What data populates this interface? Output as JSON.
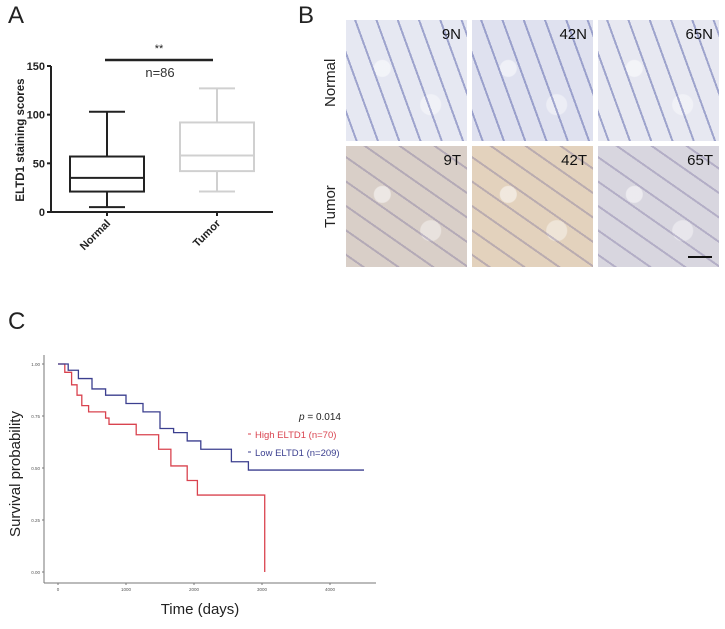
{
  "panels": {
    "a": {
      "letter": "A"
    },
    "b": {
      "letter": "B"
    },
    "c": {
      "letter": "C"
    }
  },
  "chart_data": [
    {
      "type": "box",
      "panel": "A",
      "title": "",
      "ylabel": "ELTD1 staining scores",
      "xlabel": "",
      "ylim": [
        0,
        150
      ],
      "yticks": [
        0,
        50,
        100,
        150
      ],
      "categories": [
        "Normal",
        "Tumor"
      ],
      "series": [
        {
          "name": "Normal",
          "whisker_low": 5,
          "q1": 21,
          "median": 35,
          "q3": 57,
          "whisker_high": 103,
          "color": "#222222"
        },
        {
          "name": "Tumor",
          "whisker_low": 21,
          "q1": 42,
          "median": 58,
          "q3": 92,
          "whisker_high": 127,
          "color": "#d0d0d0"
        }
      ],
      "annotations": {
        "significance": "**",
        "n_label": "n=86"
      }
    },
    {
      "type": "image-grid",
      "panel": "B",
      "rows": [
        "Normal",
        "Tumor"
      ],
      "tiles": [
        {
          "label": "9N",
          "row": "Normal"
        },
        {
          "label": "42N",
          "row": "Normal"
        },
        {
          "label": "65N",
          "row": "Normal"
        },
        {
          "label": "9T",
          "row": "Tumor"
        },
        {
          "label": "42T",
          "row": "Tumor"
        },
        {
          "label": "65T",
          "row": "Tumor"
        }
      ]
    },
    {
      "type": "line",
      "subtype": "kaplan-meier",
      "panel": "C",
      "title": "",
      "xlabel": "Time (days)",
      "ylabel": "Survival probability",
      "xlim": [
        0,
        4500
      ],
      "ylim": [
        0,
        1
      ],
      "xticks": [
        0,
        1000,
        2000,
        3000,
        4000
      ],
      "yticks": [
        "0.00",
        "0.25",
        "0.50",
        "0.75",
        "1.00"
      ],
      "grid": false,
      "annotation": {
        "p_label": "p",
        "p_value": "= 0.014"
      },
      "series": [
        {
          "name": "High ELTD1 (n=70)",
          "color": "#d9434f",
          "x": [
            0,
            100,
            200,
            280,
            350,
            450,
            700,
            750,
            1150,
            1480,
            1660,
            1900,
            2050,
            3040,
            3040
          ],
          "y": [
            1.0,
            0.96,
            0.9,
            0.85,
            0.8,
            0.77,
            0.74,
            0.71,
            0.66,
            0.59,
            0.51,
            0.44,
            0.37,
            0.37,
            0.0
          ]
        },
        {
          "name": "Low ELTD1 (n=209)",
          "color": "#3b3f8f",
          "x": [
            0,
            150,
            300,
            500,
            700,
            1000,
            1250,
            1500,
            1700,
            1900,
            2100,
            2550,
            2800,
            4500
          ],
          "y": [
            1.0,
            0.97,
            0.93,
            0.88,
            0.85,
            0.81,
            0.77,
            0.69,
            0.67,
            0.63,
            0.59,
            0.53,
            0.49,
            0.49
          ]
        }
      ]
    }
  ]
}
